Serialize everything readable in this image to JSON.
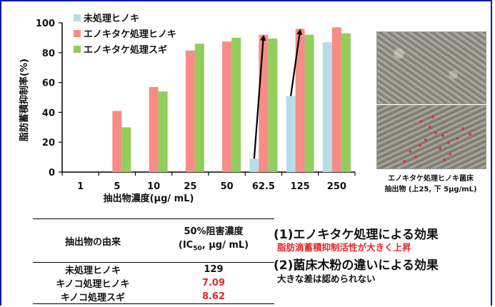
{
  "chart_data": {
    "type": "bar",
    "categories": [
      "1",
      "5",
      "10",
      "25",
      "50",
      "62.5",
      "125",
      "250"
    ],
    "series": [
      {
        "name": "未処理ヒノキ",
        "color": "#b7dde8",
        "values": [
          0,
          0,
          0,
          0,
          0,
          9,
          51,
          87
        ]
      },
      {
        "name": "エノキタケ処理ヒノキ",
        "color": "#f88c86",
        "values": [
          0,
          41,
          57,
          81.5,
          87.5,
          92,
          96,
          97
        ]
      },
      {
        "name": "エノキタケ処理スギ",
        "color": "#93cd5c",
        "values": [
          0,
          30,
          54,
          86,
          90,
          89.5,
          92,
          93
        ]
      }
    ],
    "ylim": [
      0,
      100
    ],
    "yticks": [
      "0",
      "20",
      "40",
      "60",
      "80",
      "100"
    ],
    "ylabel": "脂肪蓄積抑制率(%)",
    "xlabel": "抽出物濃度(μg/ mL)",
    "legend_position": "top-left",
    "arrows": [
      {
        "from_category": "62.5",
        "from_value": 9,
        "to_value": 92
      },
      {
        "from_category": "125",
        "from_value": 51,
        "to_value": 96
      }
    ]
  },
  "micrograph": {
    "caption_line1": "エノキタケ処理ヒノキ菌床",
    "caption_line2": "抽出物 (上25, 下 5μg/mL)"
  },
  "table": {
    "col1_header": "抽出物の由来",
    "col2_header_line1": "50%阻害濃度",
    "col2_header_line2_pre": "(IC",
    "col2_header_sub": "50",
    "col2_header_line2_post": ", μg/ mL)",
    "rows": [
      {
        "source": "未処理ヒノキ",
        "ic50": "129",
        "highlight": false
      },
      {
        "source": "キノコ処理ヒノキ",
        "ic50": "7.09",
        "highlight": true
      },
      {
        "source": "キノコ処理スギ",
        "ic50": "8.62",
        "highlight": true
      }
    ]
  },
  "effects": {
    "effect1_title": "(1)エノキタケ処理による効果",
    "effect1_detail": "脂肪滴蓄積抑制活性が大きく上昇",
    "effect2_title": "(2)菌床木粉の違いによる効果",
    "effect2_detail": "大きな差は認められない"
  }
}
